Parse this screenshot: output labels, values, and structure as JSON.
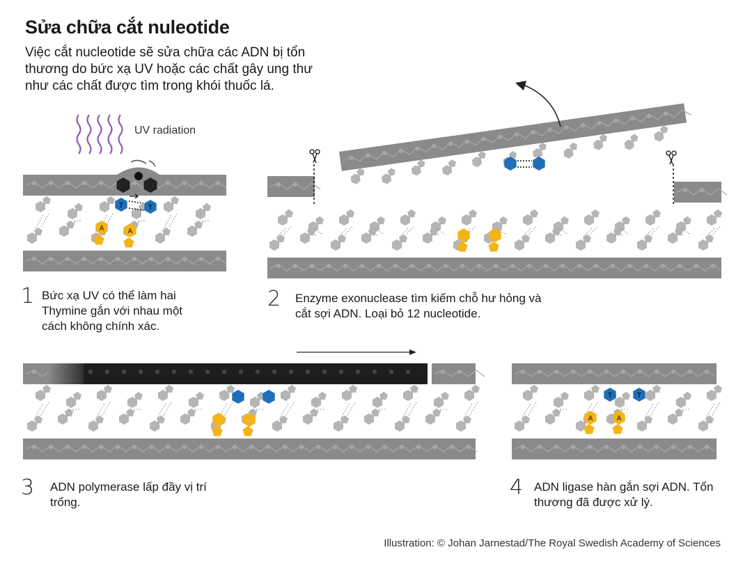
{
  "title": "Sửa chữa cắt nuleotide",
  "intro": "Việc cắt nucleotide sẽ sửa chữa các ADN bị tổn thương do bức xạ UV hoặc các chất gây ung thư như các chất được tìm trong khói thuốc lá.",
  "uv_label": "UV radiation",
  "steps": [
    {
      "number": "1",
      "text": "Bức xạ UV có thể làm hai Thymine gắn với nhau một cách không chính xác."
    },
    {
      "number": "2",
      "text": "Enzyme exonuclease tìm kiếm chỗ hư hỏng và cắt sợi ADN. Loại bỏ 12 nucleotide."
    },
    {
      "number": "3",
      "text": "ADN polymerase lấp đầy vị trí trống."
    },
    {
      "number": "4",
      "text": "ADN ligase hàn gắn sợi ADN. Tổn thương đã được xử lý."
    }
  ],
  "base_labels": {
    "thymine": "T",
    "adenine": "A"
  },
  "credit": "Illustration: © Johan Jarnestad/The Royal Swedish Academy of Sciences",
  "colors": {
    "backbone": "#8a8a8a",
    "nucleotide": "#b5b5b5",
    "thymine": "#1f6fb8",
    "adenine": "#f3b416",
    "new_strand": "#1e1e1e",
    "uv": "#8e5bb0"
  }
}
